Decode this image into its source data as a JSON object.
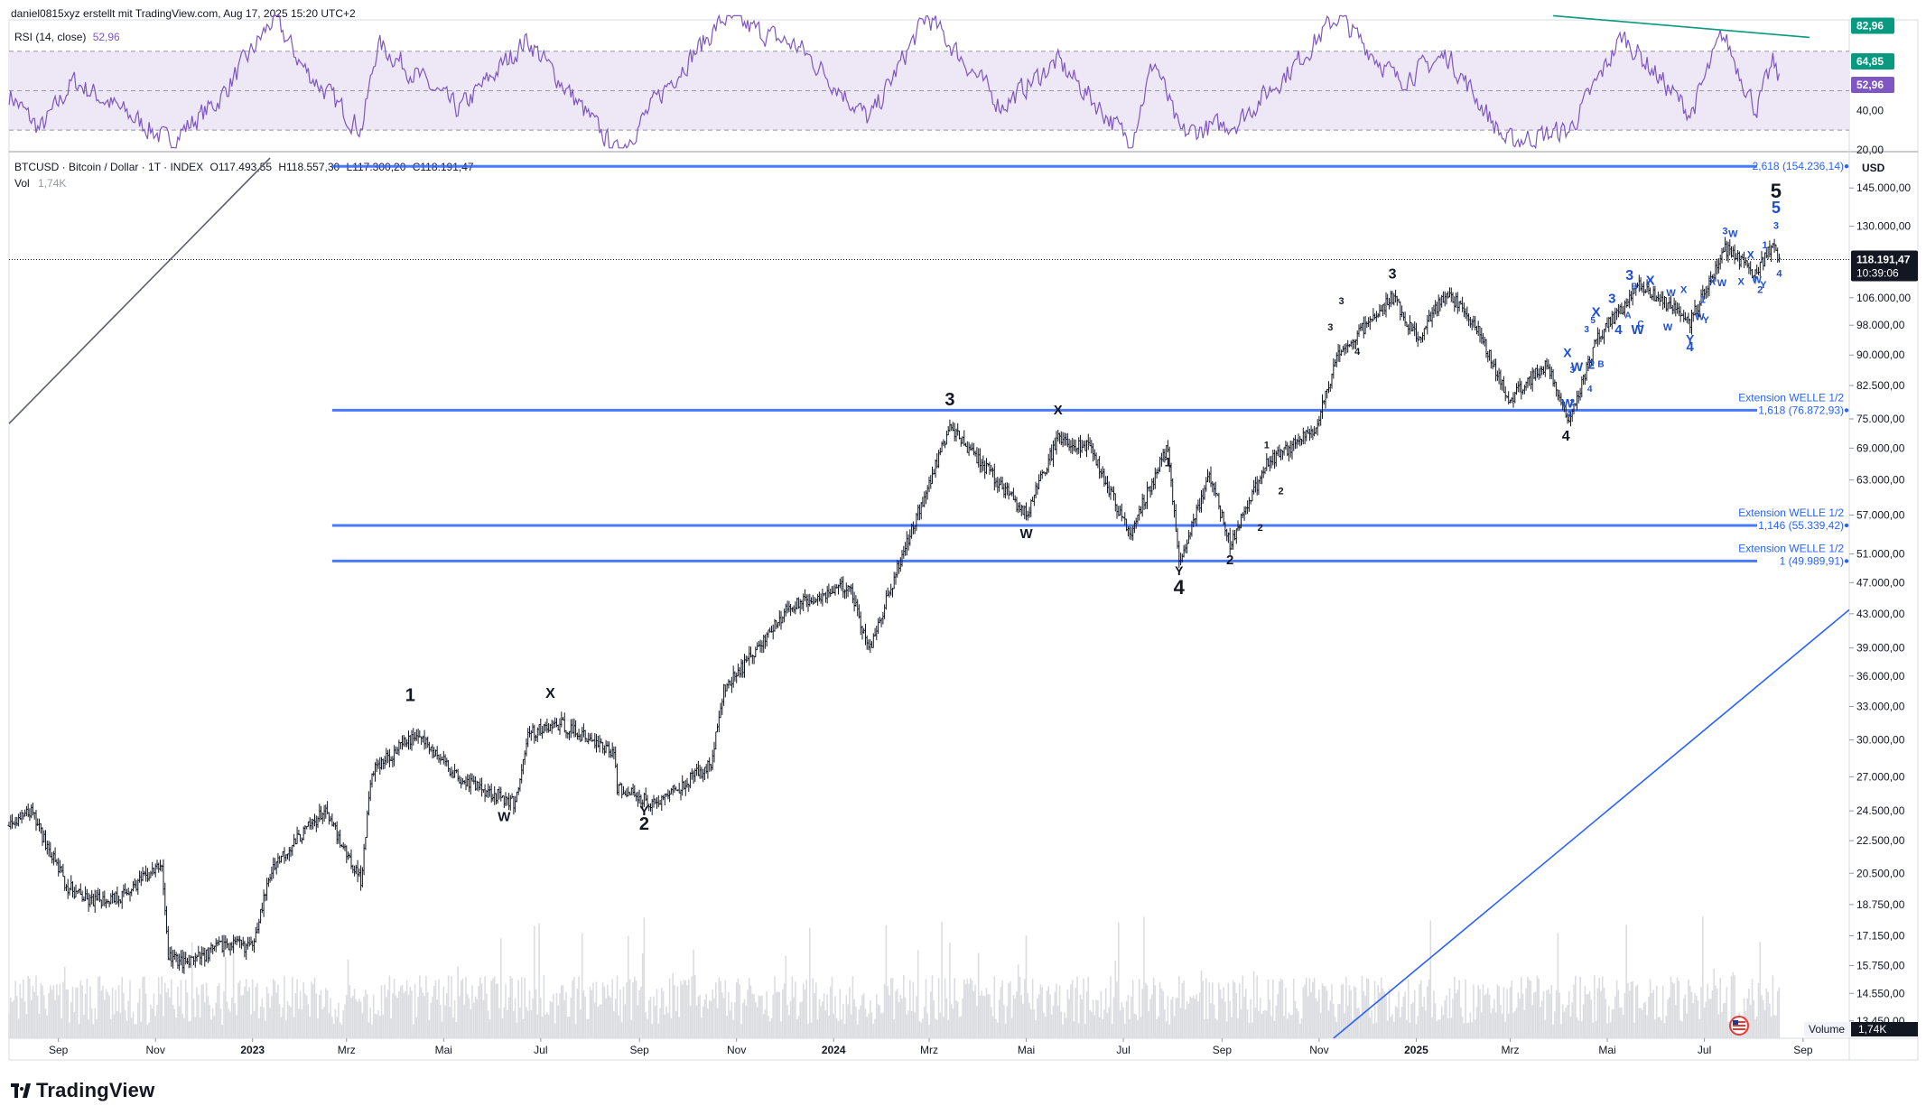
{
  "header": {
    "author_line": "daniel0815xyz erstellt mit TradingView.com, Aug 17, 2025 15:20 UTC+2"
  },
  "rsi": {
    "label": "RSI (14, close)",
    "value": "52,96",
    "ylim": [
      20,
      85
    ],
    "upper_band": 70,
    "lower_band": 30,
    "mid": 50,
    "ticks": [
      40,
      20
    ],
    "tick_labels": [
      "40,00",
      "20,00"
    ],
    "badges": [
      {
        "value": 82.96,
        "label": "82,96",
        "color": "#089981"
      },
      {
        "value": 64.85,
        "label": "64,85",
        "color": "#089981"
      },
      {
        "value": 52.96,
        "label": "52,96",
        "color": "#7e57c2"
      }
    ],
    "line_color": "#7e57c2",
    "band_fill": "#ede7f6"
  },
  "ohlc": {
    "symbol": "BTCUSD · Bitcoin / Dollar · 1T · INDEX",
    "o": "O117.493,55",
    "h": "H118.557,30",
    "l": "L117.300,20",
    "c": "C118.191,47",
    "vol_label": "Vol",
    "vol_value": "1,74K"
  },
  "axis": {
    "currency": "USD",
    "price_ticks": [
      145000,
      130000,
      106000,
      98000,
      90000,
      82500,
      75000,
      69000,
      63000,
      57000,
      51000,
      47000,
      43000,
      39000,
      36000,
      33000,
      30000,
      27000,
      24500,
      22500,
      20500,
      18750,
      17150,
      15750,
      14550,
      13450
    ],
    "price_tick_labels": [
      "145.000,00",
      "130.000,00",
      "106.000,00",
      "98.000,00",
      "90.000,00",
      "82.500,00",
      "75.000,00",
      "69.000,00",
      "63.000,00",
      "57.000,00",
      "51.000,00",
      "47.000,00",
      "43.000,00",
      "39.000,00",
      "36.000,00",
      "33.000,00",
      "30.000,00",
      "27.000,00",
      "24.500,00",
      "22.500,00",
      "20.500,00",
      "18.750,00",
      "17.150,00",
      "15.750,00",
      "14.550,00",
      "13.450,00"
    ],
    "current_price_label": "118.191,47",
    "countdown": "10:39:06",
    "time_labels": [
      "Sep",
      "Nov",
      "2023",
      "Mrz",
      "Mai",
      "Jul",
      "Sep",
      "Nov",
      "2024",
      "Mrz",
      "Mai",
      "Jul",
      "Sep",
      "Nov",
      "2025",
      "Mrz",
      "Mai",
      "Jul",
      "Sep"
    ],
    "time_dates": [
      "2022-09-01",
      "2022-11-01",
      "2023-01-01",
      "2023-03-01",
      "2023-05-01",
      "2023-07-01",
      "2023-09-01",
      "2023-11-01",
      "2024-01-01",
      "2024-03-01",
      "2024-05-01",
      "2024-07-01",
      "2024-09-01",
      "2024-11-01",
      "2025-01-01",
      "2025-03-01",
      "2025-05-01",
      "2025-07-01",
      "2025-09-01"
    ],
    "volume_label": "Volume",
    "volume_value": "1,74K"
  },
  "fib_levels": [
    {
      "title": "",
      "text": "2,618 (154.236,14)",
      "price": 154236.14,
      "start": "2023-02-20"
    },
    {
      "title": "Extension WELLE 1/2",
      "text": "1,618 (76.872,93)",
      "price": 76872.93,
      "start": "2023-02-20"
    },
    {
      "title": "Extension WELLE 1/2",
      "text": "1,146 (55.339,42)",
      "price": 55339.42,
      "start": "2023-02-20"
    },
    {
      "title": "Extension WELLE 1/2",
      "text": "1 (49.989,91)",
      "price": 49989.91,
      "start": "2023-02-20"
    }
  ],
  "chart_data": {
    "type": "ohlc",
    "scale": "log",
    "x_range": [
      "2022-08-01",
      "2025-09-30"
    ],
    "ylim": [
      12800,
      160000
    ],
    "anchors": [
      [
        "2022-08-01",
        23500
      ],
      [
        "2022-08-15",
        24400
      ],
      [
        "2022-09-06",
        19800
      ],
      [
        "2022-09-20",
        18900
      ],
      [
        "2022-10-10",
        19200
      ],
      [
        "2022-11-05",
        21000
      ],
      [
        "2022-11-09",
        16200
      ],
      [
        "2022-11-21",
        15800
      ],
      [
        "2022-12-15",
        16800
      ],
      [
        "2022-12-31",
        16600
      ],
      [
        "2023-01-14",
        21000
      ],
      [
        "2023-02-15",
        24500
      ],
      [
        "2023-03-10",
        20100
      ],
      [
        "2023-03-17",
        27500
      ],
      [
        "2023-04-14",
        30500
      ],
      [
        "2023-05-10",
        27000
      ],
      [
        "2023-06-15",
        25000
      ],
      [
        "2023-06-23",
        30500
      ],
      [
        "2023-07-13",
        31400
      ],
      [
        "2023-08-16",
        29000
      ],
      [
        "2023-08-18",
        26200
      ],
      [
        "2023-09-11",
        25000
      ],
      [
        "2023-10-16",
        28000
      ],
      [
        "2023-10-24",
        34500
      ],
      [
        "2023-12-05",
        44000
      ],
      [
        "2024-01-11",
        46700
      ],
      [
        "2024-01-23",
        38700
      ],
      [
        "2024-02-15",
        52000
      ],
      [
        "2024-03-14",
        73500
      ],
      [
        "2024-05-01",
        57000
      ],
      [
        "2024-05-21",
        71000
      ],
      [
        "2024-06-10",
        69000
      ],
      [
        "2024-07-05",
        54000
      ],
      [
        "2024-07-29",
        69500
      ],
      [
        "2024-08-05",
        49500
      ],
      [
        "2024-08-24",
        64000
      ],
      [
        "2024-09-06",
        52600
      ],
      [
        "2024-09-29",
        66000
      ],
      [
        "2024-10-29",
        72500
      ],
      [
        "2024-11-13",
        90000
      ],
      [
        "2024-12-17",
        106100
      ],
      [
        "2025-01-02",
        94000
      ],
      [
        "2025-01-20",
        108000
      ],
      [
        "2025-02-10",
        96000
      ],
      [
        "2025-02-28",
        79000
      ],
      [
        "2025-03-24",
        88000
      ],
      [
        "2025-04-07",
        75000
      ],
      [
        "2025-04-25",
        94500
      ],
      [
        "2025-05-22",
        110000
      ],
      [
        "2025-06-22",
        99000
      ],
      [
        "2025-07-14",
        122000
      ],
      [
        "2025-08-02",
        113500
      ],
      [
        "2025-08-14",
        124000
      ],
      [
        "2025-08-17",
        118191
      ]
    ],
    "last_close": 118191.47
  },
  "rsi_anchors": [
    [
      "2022-08-01",
      48
    ],
    [
      "2022-08-20",
      30
    ],
    [
      "2022-09-10",
      55
    ],
    [
      "2022-10-20",
      35
    ],
    [
      "2022-11-09",
      24
    ],
    [
      "2022-12-10",
      45
    ],
    [
      "2023-01-14",
      87
    ],
    [
      "2023-02-01",
      62
    ],
    [
      "2023-03-10",
      30
    ],
    [
      "2023-03-20",
      74
    ],
    [
      "2023-05-10",
      40
    ],
    [
      "2023-06-22",
      76
    ],
    [
      "2023-08-18",
      18
    ],
    [
      "2023-09-20",
      55
    ],
    [
      "2023-10-24",
      87
    ],
    [
      "2023-12-10",
      72
    ],
    [
      "2024-01-23",
      35
    ],
    [
      "2024-02-28",
      88
    ],
    [
      "2024-04-15",
      42
    ],
    [
      "2024-05-20",
      65
    ],
    [
      "2024-07-05",
      24
    ],
    [
      "2024-07-20",
      66
    ],
    [
      "2024-08-05",
      28
    ],
    [
      "2024-09-10",
      34
    ],
    [
      "2024-10-15",
      62
    ],
    [
      "2024-11-12",
      88
    ],
    [
      "2024-12-20",
      55
    ],
    [
      "2025-01-20",
      68
    ],
    [
      "2025-02-26",
      24
    ],
    [
      "2025-04-07",
      30
    ],
    [
      "2025-05-10",
      78
    ],
    [
      "2025-06-22",
      38
    ],
    [
      "2025-07-12",
      79
    ],
    [
      "2025-08-02",
      40
    ],
    [
      "2025-08-13",
      65
    ],
    [
      "2025-08-17",
      53
    ]
  ],
  "rsi_trendline": {
    "start": [
      "2025-03-28",
      88
    ],
    "end": [
      "2025-09-05",
      77
    ],
    "color": "#089981"
  },
  "trendlines": [
    {
      "start": [
        "2022-08-01",
        74000
      ],
      "end": [
        "2023-01-12",
        158000
      ],
      "color": "#5d606b"
    },
    {
      "start": [
        "2024-11-10",
        12800
      ],
      "end": [
        "2025-09-30",
        43500
      ],
      "color": "#2962ff"
    }
  ],
  "wave_labels": [
    {
      "text": "1",
      "date": "2023-04-10",
      "price": 33500,
      "size": 20,
      "style": "black"
    },
    {
      "text": "X",
      "date": "2023-07-07",
      "price": 33800,
      "size": 16,
      "style": "black"
    },
    {
      "text": "W",
      "date": "2023-06-08",
      "price": 23800,
      "size": 15,
      "style": "black"
    },
    {
      "text": "Y",
      "date": "2023-09-04",
      "price": 24200,
      "size": 15,
      "style": "black"
    },
    {
      "text": "2",
      "date": "2023-09-04",
      "price": 23200,
      "size": 20,
      "style": "black"
    },
    {
      "text": "3",
      "date": "2024-03-14",
      "price": 78000,
      "size": 20,
      "style": "black"
    },
    {
      "text": "X",
      "date": "2024-05-21",
      "price": 76000,
      "size": 15,
      "style": "black"
    },
    {
      "text": "W",
      "date": "2024-05-01",
      "price": 53400,
      "size": 15,
      "style": "black"
    },
    {
      "text": "1",
      "date": "2024-07-29",
      "price": 65500,
      "size": 14,
      "style": "black"
    },
    {
      "text": "Y",
      "date": "2024-08-05",
      "price": 48000,
      "size": 14,
      "style": "black"
    },
    {
      "text": "4",
      "date": "2024-08-05",
      "price": 45500,
      "size": 22,
      "style": "black"
    },
    {
      "text": "2",
      "date": "2024-09-06",
      "price": 49500,
      "size": 15,
      "style": "black"
    },
    {
      "text": "3",
      "date": "2024-12-17",
      "price": 112000,
      "size": 16,
      "style": "black"
    },
    {
      "text": "4",
      "date": "2025-04-05",
      "price": 70500,
      "size": 16,
      "style": "black"
    },
    {
      "text": "1",
      "date": "2024-09-29",
      "price": 69000,
      "size": 11,
      "style": "black"
    },
    {
      "text": "2",
      "date": "2024-10-08",
      "price": 60500,
      "size": 11,
      "style": "black"
    },
    {
      "text": "2",
      "date": "2024-09-25",
      "price": 54500,
      "size": 11,
      "style": "black"
    },
    {
      "text": "3",
      "date": "2024-11-08",
      "price": 96500,
      "size": 11,
      "style": "black"
    },
    {
      "text": "4",
      "date": "2024-11-25",
      "price": 90000,
      "size": 11,
      "style": "black"
    },
    {
      "text": "3",
      "date": "2024-11-15",
      "price": 104000,
      "size": 11,
      "style": "black"
    },
    {
      "text": "5",
      "date": "2025-08-15",
      "price": 141000,
      "size": 22,
      "style": "black"
    },
    {
      "text": "5",
      "date": "2025-08-15",
      "price": 135000,
      "size": 18,
      "style": "blue"
    },
    {
      "text": "3",
      "date": "2025-05-15",
      "price": 111500,
      "size": 16,
      "style": "blue"
    },
    {
      "text": "X",
      "date": "2025-05-28",
      "price": 110000,
      "size": 15,
      "style": "blue"
    },
    {
      "text": "3",
      "date": "2025-05-04",
      "price": 104500,
      "size": 15,
      "style": "blue"
    },
    {
      "text": "X",
      "date": "2025-04-24",
      "price": 100500,
      "size": 15,
      "style": "blue"
    },
    {
      "text": "4",
      "date": "2025-05-08",
      "price": 95500,
      "size": 15,
      "style": "blue"
    },
    {
      "text": "W",
      "date": "2025-05-20",
      "price": 95500,
      "size": 15,
      "style": "blue"
    },
    {
      "text": "Y",
      "date": "2025-06-22",
      "price": 93000,
      "size": 14,
      "style": "blue"
    },
    {
      "text": "4",
      "date": "2025-06-22",
      "price": 91000,
      "size": 15,
      "style": "blue"
    },
    {
      "text": "X",
      "date": "2025-04-06",
      "price": 89500,
      "size": 14,
      "style": "blue"
    },
    {
      "text": "2",
      "date": "2025-04-21",
      "price": 86500,
      "size": 14,
      "style": "blue"
    },
    {
      "text": "W",
      "date": "2025-04-12",
      "price": 86000,
      "size": 14,
      "style": "blue"
    },
    {
      "text": "W",
      "date": "2025-04-06",
      "price": 77500,
      "size": 14,
      "style": "blue"
    },
    {
      "text": "X",
      "date": "2025-07-30",
      "price": 118500,
      "size": 12,
      "style": "blue"
    },
    {
      "text": "W",
      "date": "2025-07-19",
      "price": 126000,
      "size": 11,
      "style": "blue"
    },
    {
      "text": "3",
      "date": "2025-07-14",
      "price": 127000,
      "size": 11,
      "style": "blue"
    },
    {
      "text": "W",
      "date": "2025-08-03",
      "price": 110500,
      "size": 11,
      "style": "blue"
    },
    {
      "text": "Y",
      "date": "2025-08-07",
      "price": 109000,
      "size": 11,
      "style": "blue"
    },
    {
      "text": "2",
      "date": "2025-08-05",
      "price": 107500,
      "size": 11,
      "style": "blue"
    },
    {
      "text": "4",
      "date": "2025-08-17",
      "price": 112500,
      "size": 11,
      "style": "blue"
    },
    {
      "text": "3",
      "date": "2025-08-15",
      "price": 129000,
      "size": 11,
      "style": "blue"
    },
    {
      "text": "1",
      "date": "2025-08-08",
      "price": 122000,
      "size": 11,
      "style": "blue"
    },
    {
      "text": "X",
      "date": "2025-07-24",
      "price": 110000,
      "size": 11,
      "style": "blue"
    },
    {
      "text": "W",
      "date": "2025-07-12",
      "price": 109500,
      "size": 11,
      "style": "blue"
    },
    {
      "text": "1",
      "date": "2025-06-30",
      "price": 104500,
      "size": 11,
      "style": "blue"
    },
    {
      "text": "W",
      "date": "2025-06-10",
      "price": 106500,
      "size": 11,
      "style": "blue"
    },
    {
      "text": "X",
      "date": "2025-06-18",
      "price": 107500,
      "size": 11,
      "style": "blue"
    },
    {
      "text": "X",
      "date": "2025-07-06",
      "price": 110000,
      "size": 11,
      "style": "blue"
    },
    {
      "text": "W",
      "date": "2025-06-28",
      "price": 99500,
      "size": 11,
      "style": "blue"
    },
    {
      "text": "Y",
      "date": "2025-07-02",
      "price": 98500,
      "size": 11,
      "style": "blue"
    },
    {
      "text": "W",
      "date": "2025-06-08",
      "price": 96500,
      "size": 11,
      "style": "blue"
    },
    {
      "text": "A",
      "date": "2025-05-14",
      "price": 100000,
      "size": 10,
      "style": "blue"
    },
    {
      "text": "C",
      "date": "2025-05-22",
      "price": 97500,
      "size": 10,
      "style": "blue"
    },
    {
      "text": "B",
      "date": "2025-05-18",
      "price": 108500,
      "size": 10,
      "style": "blue"
    },
    {
      "text": "3",
      "date": "2025-04-18",
      "price": 96000,
      "size": 10,
      "style": "blue"
    },
    {
      "text": "5",
      "date": "2025-04-22",
      "price": 98500,
      "size": 10,
      "style": "blue"
    },
    {
      "text": "B",
      "date": "2025-04-27",
      "price": 87000,
      "size": 10,
      "style": "blue"
    },
    {
      "text": "3",
      "date": "2025-04-09",
      "price": 85500,
      "size": 10,
      "style": "blue"
    },
    {
      "text": "4",
      "date": "2025-04-20",
      "price": 81000,
      "size": 10,
      "style": "blue"
    },
    {
      "text": "2",
      "date": "2025-04-09",
      "price": 78000,
      "size": 10,
      "style": "blue"
    },
    {
      "text": "4",
      "date": "2025-04-07",
      "price": 75500,
      "size": 10,
      "style": "blue"
    }
  ]
}
